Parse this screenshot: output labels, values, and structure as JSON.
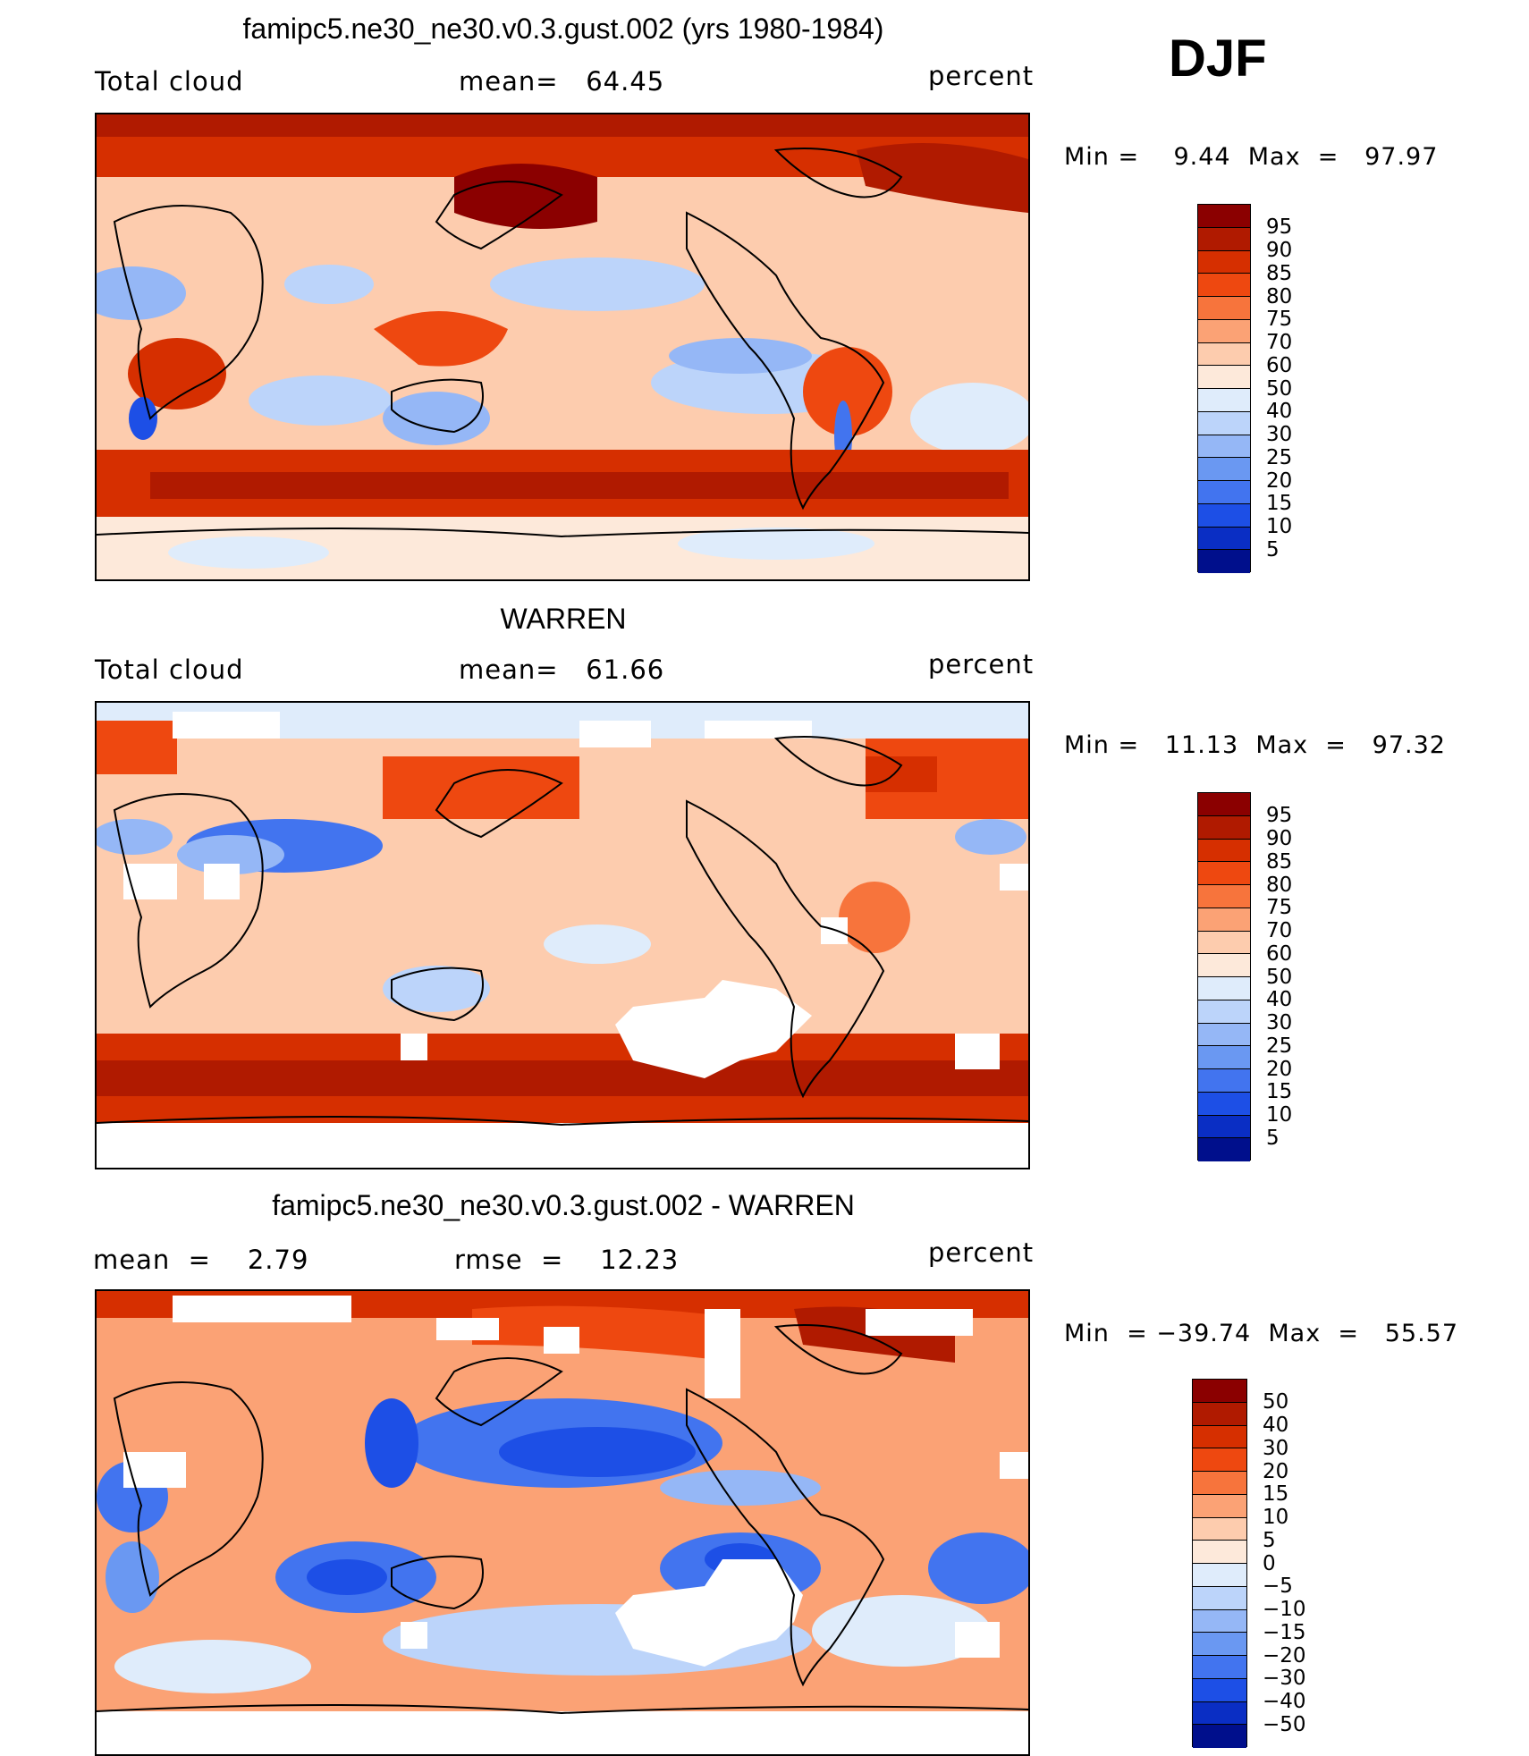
{
  "season": "DJF",
  "panels": [
    {
      "title": "famipc5.ne30_ne30.v0.3.gust.002 (yrs 1980-1984)",
      "left_label": "Total cloud",
      "center_label": "mean=   64.45",
      "units": "percent",
      "minmax": "Min =    9.44  Max  =   97.97",
      "colorbar": {
        "labels": [
          "95",
          "90",
          "85",
          "80",
          "75",
          "70",
          "60",
          "50",
          "40",
          "30",
          "25",
          "20",
          "15",
          "10",
          "5"
        ],
        "colors": [
          "#8b0000",
          "#b01a00",
          "#d62f00",
          "#ee4810",
          "#f7743c",
          "#fba275",
          "#fdccae",
          "#fde9da",
          "#dfecfb",
          "#bcd4fa",
          "#95b7f6",
          "#6a98f2",
          "#4274ef",
          "#1d4fe6",
          "#0a2ec4",
          "#000f8c"
        ]
      }
    },
    {
      "title": "WARREN",
      "left_label": "Total cloud",
      "center_label": "mean=   61.66",
      "units": "percent",
      "minmax": "Min =   11.13  Max  =   97.32",
      "colorbar": {
        "labels": [
          "95",
          "90",
          "85",
          "80",
          "75",
          "70",
          "60",
          "50",
          "40",
          "30",
          "25",
          "20",
          "15",
          "10",
          "5"
        ],
        "colors": [
          "#8b0000",
          "#b01a00",
          "#d62f00",
          "#ee4810",
          "#f7743c",
          "#fba275",
          "#fdccae",
          "#fde9da",
          "#dfecfb",
          "#bcd4fa",
          "#95b7f6",
          "#6a98f2",
          "#4274ef",
          "#1d4fe6",
          "#0a2ec4",
          "#000f8c"
        ]
      }
    },
    {
      "title": "famipc5.ne30_ne30.v0.3.gust.002 - WARREN",
      "left_label": "mean  =    2.79",
      "center_label": "rmse  =    12.23",
      "units": "percent",
      "minmax": "Min  = −39.74  Max  =   55.57",
      "colorbar": {
        "labels": [
          "50",
          "40",
          "30",
          "20",
          "15",
          "10",
          "5",
          "0",
          "−5",
          "−10",
          "−15",
          "−20",
          "−30",
          "−40",
          "−50"
        ],
        "colors": [
          "#8b0000",
          "#b01a00",
          "#d62f00",
          "#ee4810",
          "#f7743c",
          "#fba275",
          "#fdccae",
          "#fde9da",
          "#dfecfb",
          "#bcd4fa",
          "#95b7f6",
          "#6a98f2",
          "#4274ef",
          "#1d4fe6",
          "#0a2ec4",
          "#000f8c"
        ]
      }
    }
  ]
}
